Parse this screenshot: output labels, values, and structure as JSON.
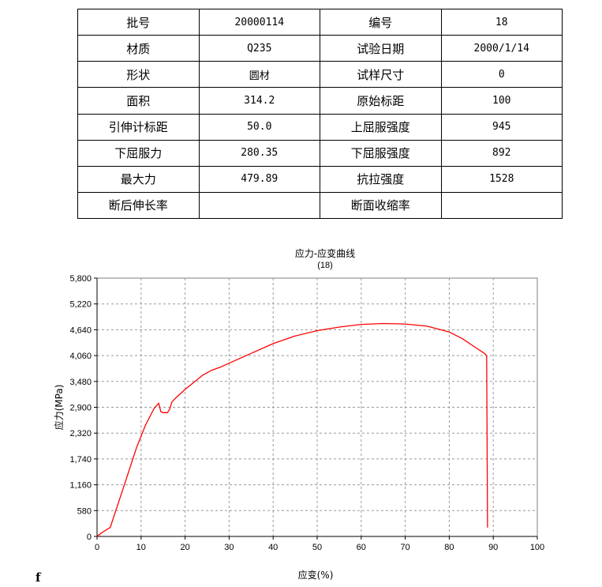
{
  "report": {
    "rows": [
      [
        "批号",
        "20000114",
        "编号",
        "18"
      ],
      [
        "材质",
        "Q235",
        "试验日期",
        "2000/1/14"
      ],
      [
        "形状",
        "圆材",
        "试样尺寸",
        "0"
      ],
      [
        "面积",
        "314.2",
        "原始标距",
        "100"
      ],
      [
        "引伸计标距",
        "50.0",
        "上屈服强度",
        "945"
      ],
      [
        "下屈服力",
        "280.35",
        "下屈服强度",
        "892"
      ],
      [
        "最大力",
        "479.89",
        "抗拉强度",
        "1528"
      ],
      [
        "断后伸长率",
        "",
        "断面收缩率",
        ""
      ]
    ]
  },
  "chart_data": {
    "type": "line",
    "title": "应力-应变曲线",
    "subtitle": "(18)",
    "xlabel": "应变(%)",
    "ylabel": "应力(MPa)",
    "xlim": [
      0,
      100
    ],
    "ylim": [
      0,
      5800
    ],
    "xticks": [
      "0",
      "10",
      "20",
      "30",
      "40",
      "50",
      "60",
      "70",
      "80",
      "90",
      "100"
    ],
    "yticks": [
      "0",
      "580",
      "1,160",
      "1,740",
      "2,320",
      "2,900",
      "3,480",
      "4,060",
      "4,640",
      "5,220",
      "5,800"
    ],
    "grid": true,
    "line_color": "#ff0000",
    "series": [
      {
        "x": [
          0,
          1,
          3,
          5,
          7,
          9,
          11,
          13,
          14,
          14.5,
          15,
          16,
          16.5,
          17,
          18,
          20,
          22,
          24,
          26,
          28,
          30,
          35,
          40,
          45,
          50,
          55,
          60,
          65,
          70,
          75,
          80,
          83,
          86,
          88,
          88.5,
          88.6,
          88.7
        ],
        "y": [
          0,
          80,
          200,
          800,
          1400,
          2000,
          2500,
          2880,
          2990,
          2800,
          2780,
          2780,
          2860,
          3020,
          3120,
          3300,
          3460,
          3620,
          3730,
          3800,
          3890,
          4110,
          4330,
          4500,
          4620,
          4700,
          4760,
          4780,
          4770,
          4720,
          4590,
          4440,
          4240,
          4110,
          4060,
          2000,
          200
        ]
      }
    ]
  },
  "footer": {
    "mark": "f"
  }
}
